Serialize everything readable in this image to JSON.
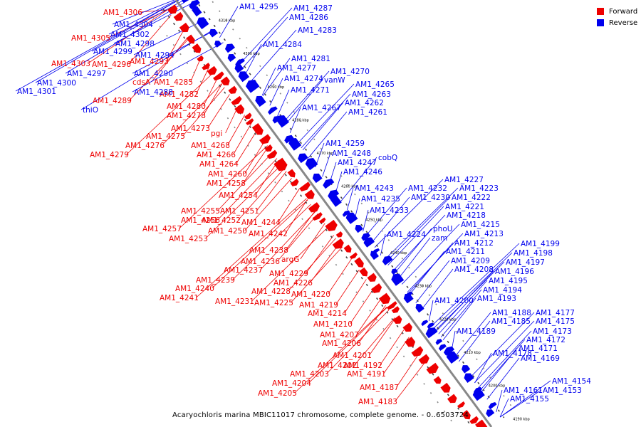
{
  "caption": "Acaryochloris marina MBIC11017 chromosome, complete genome. - 0..6503724",
  "legend": [
    {
      "label": "Forward",
      "color": "#ee0000"
    },
    {
      "label": "Reverse",
      "color": "#0000ee"
    }
  ],
  "colors": {
    "forward": "#ee0000",
    "reverse": "#0000ee",
    "backbone": "#888888"
  },
  "ticks": [
    "4310 kbp",
    "4300 kbp",
    "4290 kbp",
    "4280 kbp",
    "4270 kbp",
    "4260 kbp",
    "4250 kbp",
    "4240 kbp",
    "4230 kbp",
    "4220 kbp",
    "4210 kbp",
    "4200 kbp",
    "4190 kbp"
  ],
  "labels": {
    "forward": [
      "AM1_4306",
      "AM1_4305",
      "AM1_4303",
      "AM1_4296",
      "AM1_4293",
      "AM1_4285",
      "cdsA",
      "AM1_4282",
      "AM1_4289",
      "AM1_4280",
      "AM1_4278",
      "AM1_4273",
      "pgi",
      "AM1_4275",
      "AM1_4276",
      "AM1_4268",
      "AM1_4279",
      "AM1_4266",
      "AM1_4264",
      "AM1_4260",
      "AM1_4258",
      "AM1_4254",
      "AM1_4255",
      "AM1_4251",
      "AM1_4256",
      "AM1_4252",
      "AM1_4244",
      "AM1_4257",
      "AM1_4250",
      "AM1_4242",
      "AM1_4253",
      "AM1_4238",
      "argG",
      "AM1_4236",
      "AM1_4237",
      "AM1_4229",
      "AM1_4239",
      "AM1_4226",
      "AM1_4240",
      "AM1_4228",
      "AM1_4220",
      "AM1_4241",
      "AM1_4231",
      "AM1_4225",
      "AM1_4219",
      "AM1_4214",
      "AM1_4210",
      "AM1_4207",
      "AM1_4206",
      "AM1_4201",
      "AM1_4202",
      "AM1_4192",
      "AM1_4191",
      "AM1_4203",
      "AM1_4204",
      "AM1_4187",
      "AM1_4205",
      "AM1_4183"
    ],
    "reverse": [
      "AM1_4304",
      "AM1_4302",
      "AM1_4298",
      "AM1_4299",
      "AM1_4294",
      "AM1_4297",
      "AM1_4290",
      "AM1_4300",
      "AM1_4288",
      "AM1_4301",
      "thiO",
      "AM1_4295",
      "AM1_4287",
      "AM1_4286",
      "AM1_4283",
      "AM1_4284",
      "AM1_4281",
      "AM1_4277",
      "AM1_4274",
      "vanW",
      "AM1_4270",
      "AM1_4271",
      "AM1_4265",
      "AM1_4263",
      "AM1_4262",
      "AM1_4267",
      "AM1_4261",
      "AM1_4259",
      "AM1_4248",
      "AM1_4247",
      "cobQ",
      "AM1_4246",
      "AM1_4243",
      "AM1_4235",
      "AM1_4233",
      "AM1_4232",
      "AM1_4230",
      "AM1_4227",
      "AM1_4223",
      "AM1_4222",
      "AM1_4221",
      "AM1_4218",
      "AM1_4224",
      "AM1_4215",
      "phoU",
      "zam",
      "AM1_4213",
      "AM1_4212",
      "AM1_4211",
      "AM1_4209",
      "AM1_4208",
      "AM1_4199",
      "AM1_4198",
      "AM1_4197",
      "AM1_4196",
      "AM1_4195",
      "AM1_4194",
      "AM1_4200",
      "AM1_4193",
      "AM1_4188",
      "AM1_4177",
      "AM1_4185",
      "AM1_4175",
      "AM1_4189",
      "AM1_4173",
      "AM1_4172",
      "AM1_4171",
      "AM1_4178",
      "AM1_4169",
      "AM1_4154",
      "AM1_4161",
      "AM1_4153",
      "AM1_4155"
    ]
  }
}
